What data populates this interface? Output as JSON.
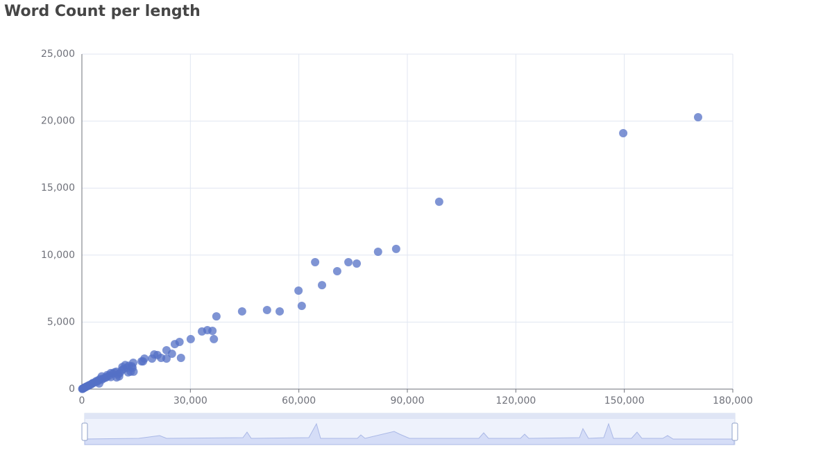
{
  "chart_data": {
    "type": "scatter",
    "title": "Word Count per length",
    "color": "#5470c6",
    "grid": true,
    "xlim": [
      0,
      180000
    ],
    "xticks": [
      0,
      {
        "value": 30000,
        "label": "30,000"
      },
      {
        "value": 60000,
        "label": "60,000"
      },
      {
        "value": 90000,
        "label": "90,000"
      },
      {
        "value": 120000,
        "label": "120,000"
      },
      {
        "value": 150000,
        "label": "150,000"
      },
      {
        "value": 180000,
        "label": "180,000"
      }
    ],
    "ylim": [
      0,
      25000
    ],
    "yticks": [
      0,
      {
        "value": 5000,
        "label": "5,000"
      },
      {
        "value": 10000,
        "label": "10,000"
      },
      {
        "value": 15000,
        "label": "15,000"
      },
      {
        "value": 20000,
        "label": "20,000"
      },
      {
        "value": 25000,
        "label": "25,000"
      }
    ],
    "x": [
      170400,
      149700,
      98800,
      86900,
      81900,
      76000,
      73700,
      70600,
      66400,
      64500,
      60800,
      59900,
      54700,
      51200,
      44300,
      37200,
      36500,
      36100,
      34700,
      33200,
      30100,
      27400,
      27000,
      25700,
      24900,
      23400,
      23400,
      21900,
      20900,
      20000,
      19400,
      17300,
      16900,
      16500,
      14200,
      13800,
      13000,
      12500,
      13500,
      12000,
      11500,
      11000,
      10500,
      10000,
      11200,
      9500,
      9000,
      8500,
      8000,
      8000,
      7500,
      7000,
      6800,
      6500,
      6000,
      5500,
      5500,
      5000,
      4500,
      4200,
      4000,
      3500,
      3000,
      2800,
      2500,
      2000,
      1800,
      1500,
      1200,
      1000,
      800,
      600,
      400,
      300,
      200,
      100,
      14000,
      14300,
      10300,
      9600,
      12800,
      4800
    ],
    "values": [
      20290,
      19100,
      13980,
      10460,
      10250,
      9370,
      9470,
      8800,
      7760,
      9470,
      6210,
      7350,
      5800,
      5900,
      5800,
      5430,
      3730,
      4350,
      4400,
      4300,
      3730,
      2330,
      3520,
      3360,
      2640,
      2900,
      2280,
      2330,
      2540,
      2590,
      2280,
      2280,
      2070,
      2070,
      1970,
      1710,
      1750,
      1600,
      1300,
      1800,
      1500,
      1400,
      1200,
      1100,
      1650,
      1300,
      1250,
      1150,
      900,
      1200,
      1000,
      1050,
      900,
      850,
      800,
      950,
      700,
      750,
      650,
      550,
      600,
      500,
      450,
      400,
      350,
      300,
      250,
      220,
      180,
      150,
      120,
      90,
      60,
      40,
      30,
      15,
      1600,
      1300,
      950,
      870,
      1250,
      420
    ]
  }
}
